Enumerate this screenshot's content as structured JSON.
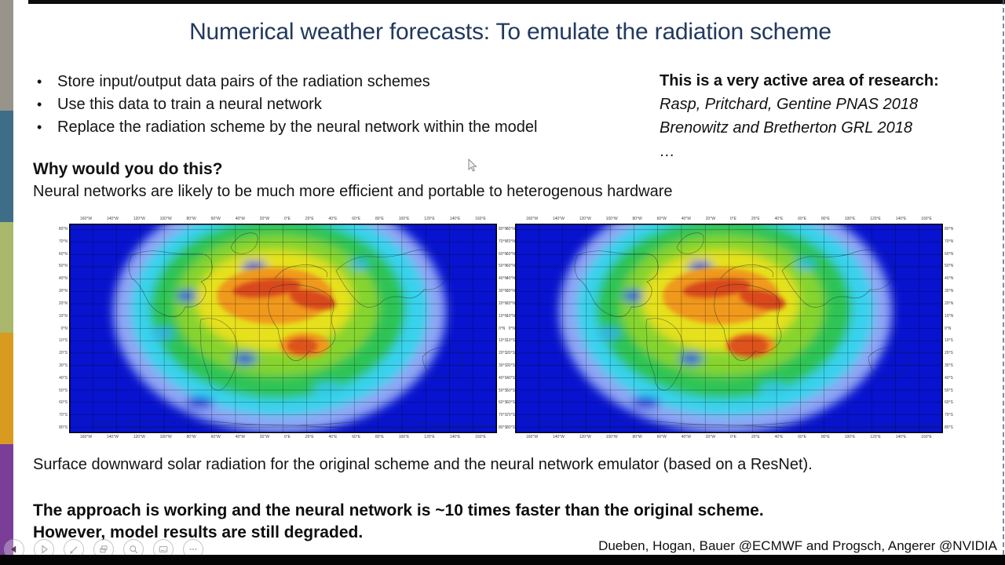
{
  "slide": {
    "title": "Numerical weather forecasts: To emulate the radiation scheme",
    "bullets": [
      "Store input/output data pairs of the radiation schemes",
      "Use this data to train a neural network",
      "Replace the radiation scheme by the neural network within the model"
    ],
    "research_note": {
      "heading": "This is a very active area of research:",
      "refs": [
        "Rasp, Pritchard, Gentine PNAS 2018",
        "Brenowitz and Bretherton GRL 2018",
        "…"
      ]
    },
    "why": {
      "heading": "Why would you do this?",
      "body": "Neural networks are likely to be much more efficient and portable to heterogenous hardware"
    },
    "caption": "Surface downward solar radiation for the original scheme and the neural network emulator (based on a ResNet).",
    "conclusion_line1": "The approach is working and the neural network is ~10 times faster than the original scheme.",
    "conclusion_line2": "However, model results are still degraded.",
    "credit": "Dueben, Hogan, Bauer @ECMWF and Progsch, Angerer @NVIDIA",
    "title_color": "#22395f"
  },
  "maps": {
    "lon_ticks": [
      "160°W",
      "140°W",
      "120°W",
      "100°W",
      "80°W",
      "60°W",
      "40°W",
      "20°W",
      "0°E",
      "20°E",
      "40°E",
      "60°E",
      "80°E",
      "100°E",
      "120°E",
      "140°E",
      "160°E"
    ],
    "lat_ticks": [
      "80°N",
      "70°N",
      "60°N",
      "50°N",
      "40°N",
      "30°N",
      "20°N",
      "10°N",
      "0°N",
      "10°S",
      "20°S",
      "30°S",
      "40°S",
      "50°S",
      "60°S",
      "70°S",
      "80°S"
    ],
    "colormap": [
      "#0813cf",
      "#8ea4f4",
      "#38d2ee",
      "#2ec455",
      "#86d42e",
      "#e6e11f",
      "#f0991c",
      "#d9481c"
    ]
  },
  "sidebar_colors": [
    "#99948b",
    "#3d6d87",
    "#a9b86c",
    "#d89b20",
    "#7a3e98"
  ],
  "player": {
    "buttons": [
      {
        "name": "previous-button",
        "icon": "previous-arrow-icon"
      },
      {
        "name": "next-button",
        "icon": "next-arrow-icon"
      },
      {
        "name": "pen-button",
        "icon": "pen-icon"
      },
      {
        "name": "all-slides-button",
        "icon": "slide-grid-icon"
      },
      {
        "name": "zoom-button",
        "icon": "magnifier-icon"
      },
      {
        "name": "captions-button",
        "icon": "captions-icon"
      },
      {
        "name": "more-button",
        "icon": "ellipsis-icon"
      }
    ]
  }
}
